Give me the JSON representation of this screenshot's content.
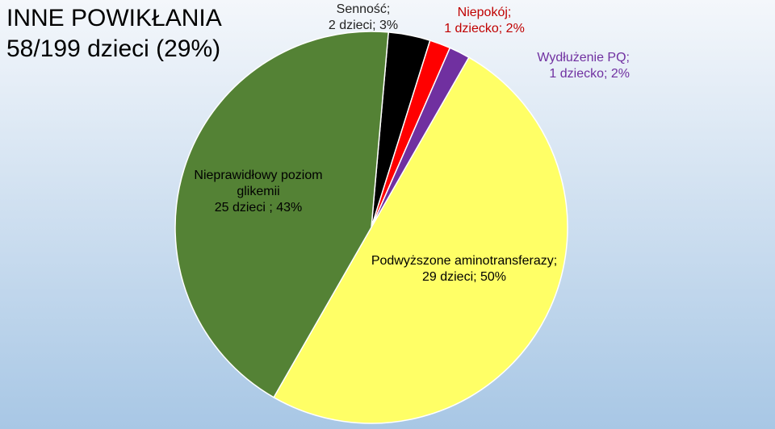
{
  "chart_data": {
    "type": "pie",
    "title": "INNE POWIKŁANIA",
    "subtitle": "58/199 dzieci (29%)",
    "categories": [
      "Senność;",
      "Niepokój;",
      "Wydłużenie PQ;",
      "Podwyższone aminotransferazy;",
      "Nieprawidłowy poziom glikemii"
    ],
    "values": [
      2,
      1,
      1,
      29,
      25
    ],
    "value_labels": [
      "2 dzieci; 3%",
      "1 dziecko; 2%",
      "1 dziecko; 2%",
      "29 dzieci; 50%",
      "25 dzieci ; 43%"
    ],
    "colors": [
      "#000000",
      "#ff0000",
      "#7030a0",
      "#ffff66",
      "#548235"
    ]
  }
}
